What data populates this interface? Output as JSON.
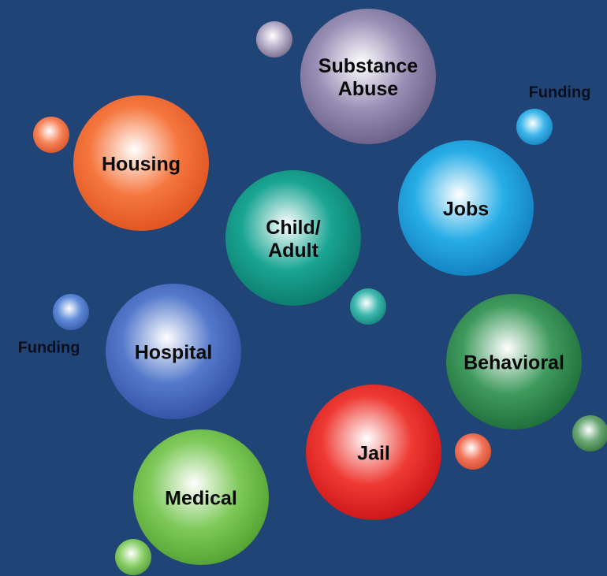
{
  "nodes": [
    {
      "label": [
        "Substance",
        "Abuse"
      ]
    },
    {
      "label": [
        "Housing"
      ]
    },
    {
      "label": [
        "Jobs"
      ]
    },
    {
      "label": [
        "Child/",
        "Adult"
      ]
    },
    {
      "label": [
        "Hospital"
      ]
    },
    {
      "label": [
        "Behavioral"
      ]
    },
    {
      "label": [
        "Jail"
      ]
    },
    {
      "label": [
        "Medical"
      ]
    }
  ],
  "annotations": [
    "Funding",
    "Funding"
  ]
}
